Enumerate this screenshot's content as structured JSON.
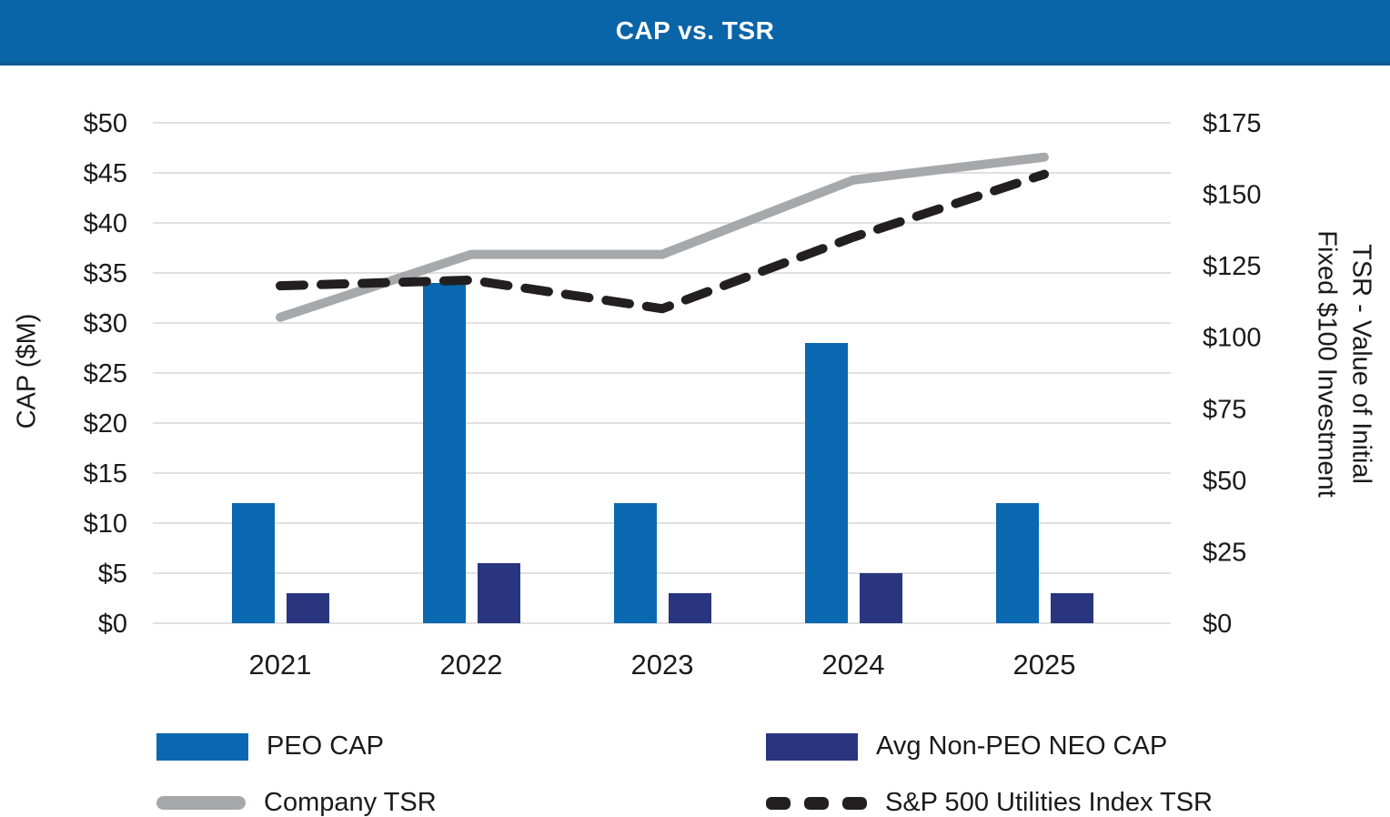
{
  "header": {
    "title": "CAP vs. TSR",
    "bg_color": "#0A64A8",
    "strip_color": "#0B5B98",
    "text_color": "#FFFFFF"
  },
  "chart_data": {
    "type": "combo-bar-line",
    "title": "CAP vs. TSR",
    "categories": [
      "2021",
      "2022",
      "2023",
      "2024",
      "2025"
    ],
    "bar_series": [
      {
        "name": "PEO CAP",
        "axis": "left",
        "color": "#0A68B1",
        "values": [
          12,
          34,
          12,
          28,
          12
        ]
      },
      {
        "name": "Avg Non-PEO NEO CAP",
        "axis": "left",
        "color": "#2A3580",
        "values": [
          3,
          6,
          3,
          5,
          3
        ]
      }
    ],
    "line_series": [
      {
        "name": "Company TSR",
        "axis": "right",
        "style": "solid",
        "color": "#A6A8AB",
        "values": [
          107,
          129,
          129,
          155,
          163
        ]
      },
      {
        "name": "S&P 500 Utilities Index TSR",
        "axis": "right",
        "style": "dashed",
        "color": "#231F20",
        "values": [
          118,
          120,
          110,
          135,
          157
        ]
      }
    ],
    "left_axis": {
      "title": "CAP ($M)",
      "min": 0,
      "max": 50,
      "step": 5,
      "tick_values": [
        0,
        5,
        10,
        15,
        20,
        25,
        30,
        35,
        40,
        45,
        50
      ],
      "tick_labels": [
        "$0",
        "$5",
        "$10",
        "$15",
        "$20",
        "$25",
        "$30",
        "$35",
        "$40",
        "$45",
        "$50"
      ]
    },
    "right_axis": {
      "title_line1": "TSR - Value of Initial",
      "title_line2": "Fixed $100 Investment",
      "min": 0,
      "max": 175,
      "step": 25,
      "tick_values": [
        0,
        25,
        50,
        75,
        100,
        125,
        150,
        175
      ],
      "tick_labels": [
        "$0",
        "$25",
        "$50",
        "$75",
        "$100",
        "$125",
        "$150",
        "$175"
      ]
    },
    "grid": true,
    "gridline_color": "#D6D6D6",
    "axis_text_color": "#1A1A1A",
    "legend_position": "bottom"
  },
  "legend": {
    "items": [
      {
        "label": "PEO CAP",
        "swatch": "bar",
        "color": "#0A68B1"
      },
      {
        "label": "Avg Non-PEO NEO CAP",
        "swatch": "bar",
        "color": "#2A3580"
      },
      {
        "label": "Company TSR",
        "swatch": "line-solid",
        "color": "#A6A8AB"
      },
      {
        "label": "S&P 500 Utilities Index TSR",
        "swatch": "line-dashed",
        "color": "#231F20"
      }
    ]
  }
}
